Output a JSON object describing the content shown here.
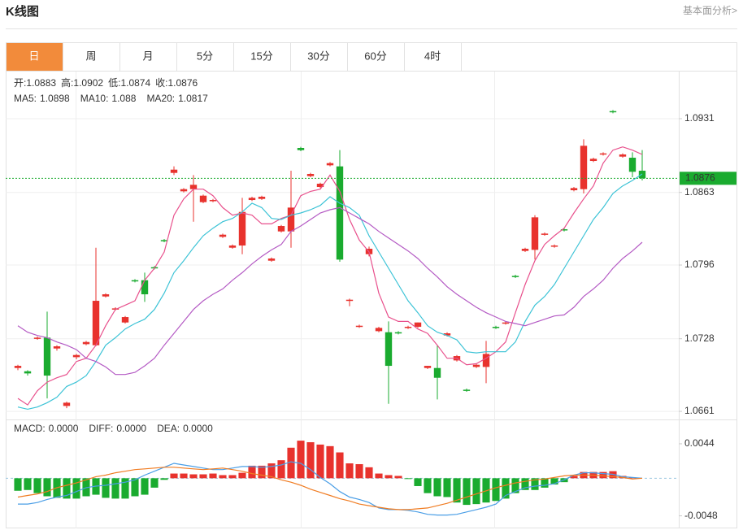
{
  "header": {
    "title": "K线图",
    "link": "基本面分析>"
  },
  "tabs": [
    "日",
    "周",
    "月",
    "5分",
    "15分",
    "30分",
    "60分",
    "4时"
  ],
  "active_tab": 0,
  "chart_data": [
    {
      "type": "candlestick",
      "ohlc_labels": [
        "开:",
        "高:",
        "低:",
        "收:"
      ],
      "up_color": "#e8322d",
      "down_color": "#1aab2f",
      "open": [
        1.0701,
        1.0698,
        1.0728,
        1.0729,
        1.0719,
        1.0666,
        1.0711,
        1.0723,
        1.0722,
        1.0767,
        1.0755,
        1.0743,
        1.0782,
        1.0782,
        1.0794,
        1.0819,
        1.0881,
        1.0864,
        1.0866,
        1.0854,
        1.0855,
        1.0822,
        1.0812,
        1.0814,
        1.0856,
        1.0857,
        1.08,
        1.0827,
        1.0827,
        1.0904,
        1.0878,
        1.0868,
        1.0888,
        1.0887,
        1.0763,
        1.0739,
        1.0806,
        1.0735,
        1.0734,
        1.0734,
        1.0738,
        1.0739,
        1.0701,
        1.0701,
        1.0731,
        1.0708,
        1.0681,
        1.0702,
        1.0702,
        1.0739,
        1.0742,
        1.0786,
        1.0809,
        1.081,
        1.0824,
        1.0813,
        1.0829,
        1.0865,
        1.0866,
        1.0892,
        1.0898,
        1.0938,
        1.0896,
        1.0895,
        1.0883
      ],
      "high": [
        1.0704,
        1.0699,
        1.073,
        1.0753,
        1.0722,
        1.067,
        1.0714,
        1.0726,
        1.0812,
        1.077,
        1.0757,
        1.0749,
        1.0783,
        1.0789,
        1.0795,
        1.082,
        1.0887,
        1.0867,
        1.0879,
        1.0861,
        1.0857,
        1.0825,
        1.0815,
        1.0858,
        1.0859,
        1.086,
        1.0803,
        1.0833,
        1.0883,
        1.0905,
        1.0881,
        1.0872,
        1.0891,
        1.0902,
        1.0765,
        1.0741,
        1.0813,
        1.0739,
        1.0744,
        1.0735,
        1.074,
        1.0743,
        1.0703,
        1.0722,
        1.0734,
        1.0713,
        1.0682,
        1.0705,
        1.0726,
        1.074,
        1.0744,
        1.0787,
        1.0812,
        1.0842,
        1.0826,
        1.0815,
        1.083,
        1.0868,
        1.0912,
        1.0895,
        1.09,
        1.0939,
        1.0899,
        1.09,
        1.0902
      ],
      "low": [
        1.0699,
        1.0694,
        1.0727,
        1.0673,
        1.0717,
        1.0664,
        1.0709,
        1.0722,
        1.0721,
        1.0766,
        1.0754,
        1.0742,
        1.078,
        1.0762,
        1.0792,
        1.0817,
        1.0879,
        1.0863,
        1.0836,
        1.0853,
        1.0854,
        1.0821,
        1.0811,
        1.0806,
        1.0855,
        1.0856,
        1.0799,
        1.0826,
        1.0812,
        1.0901,
        1.0877,
        1.0867,
        1.0887,
        1.0799,
        1.0758,
        1.0738,
        1.0804,
        1.0734,
        1.0668,
        1.0732,
        1.0737,
        1.0738,
        1.07,
        1.0672,
        1.073,
        1.0707,
        1.0679,
        1.0701,
        1.0687,
        1.0737,
        1.0741,
        1.0784,
        1.0808,
        1.0801,
        1.0823,
        1.0812,
        1.0827,
        1.0864,
        1.0862,
        1.0891,
        1.0897,
        1.0936,
        1.0895,
        1.0877,
        1.0874
      ],
      "close": [
        1.0703,
        1.0696,
        1.0729,
        1.0694,
        1.0721,
        1.0669,
        1.0713,
        1.0725,
        1.0763,
        1.0769,
        1.0756,
        1.0748,
        1.0781,
        1.0769,
        1.0793,
        1.0818,
        1.0884,
        1.0866,
        1.087,
        1.086,
        1.0856,
        1.0824,
        1.0814,
        1.0845,
        1.0858,
        1.0859,
        1.0802,
        1.0832,
        1.0849,
        1.0902,
        1.088,
        1.0871,
        1.089,
        1.0801,
        1.0764,
        1.074,
        1.0811,
        1.0738,
        1.0703,
        1.0733,
        1.0739,
        1.0743,
        1.0703,
        1.0692,
        1.0733,
        1.0712,
        1.068,
        1.0704,
        1.0714,
        1.0738,
        1.0743,
        1.0785,
        1.0811,
        1.084,
        1.0825,
        1.0814,
        1.0828,
        1.0867,
        1.0906,
        1.0894,
        1.0899,
        1.0937,
        1.0898,
        1.0882,
        1.0876
      ],
      "series": [
        {
          "name": "MA5:",
          "color": "#e8508c",
          "values": [
            1.0673,
            1.0667,
            1.068,
            1.0688,
            1.0692,
            1.0695,
            1.0707,
            1.071,
            1.0722,
            1.074,
            1.0755,
            1.0759,
            1.0763,
            1.0782,
            1.0793,
            1.0808,
            1.0842,
            1.0857,
            1.0866,
            1.0866,
            1.086,
            1.0849,
            1.0842,
            1.0844,
            1.0842,
            1.0834,
            1.0834,
            1.0839,
            1.0842,
            1.086,
            1.0864,
            1.0866,
            1.0879,
            1.0864,
            1.0838,
            1.0819,
            1.0808,
            1.077,
            1.0748,
            1.0744,
            1.0744,
            1.0737,
            1.0733,
            1.0722,
            1.071,
            1.071,
            1.0704,
            1.0705,
            1.071,
            1.0716,
            1.0725,
            1.0752,
            1.0778,
            1.08,
            1.0815,
            1.0823,
            1.083,
            1.0844,
            1.0857,
            1.0869,
            1.089,
            1.0902,
            1.0905,
            1.0902,
            1.0898
          ]
        },
        {
          "name": "MA10:",
          "color": "#3cc3d6",
          "values": [
            1.0665,
            1.0663,
            1.0665,
            1.0669,
            1.0674,
            1.0684,
            1.0688,
            1.0694,
            1.0707,
            1.0722,
            1.0729,
            1.0737,
            1.0742,
            1.0746,
            1.0755,
            1.077,
            1.0789,
            1.08,
            1.0812,
            1.0823,
            1.083,
            1.0836,
            1.0839,
            1.0845,
            1.0853,
            1.0849,
            1.0839,
            1.0838,
            1.0842,
            1.0844,
            1.0847,
            1.0851,
            1.0859,
            1.0853,
            1.0849,
            1.0842,
            1.0823,
            1.0808,
            1.0793,
            1.0778,
            1.0763,
            1.0752,
            1.074,
            1.0734,
            1.0731,
            1.0727,
            1.0716,
            1.0715,
            1.0716,
            1.0716,
            1.0716,
            1.0725,
            1.0744,
            1.0759,
            1.0767,
            1.0778,
            1.0793,
            1.0808,
            1.0823,
            1.0838,
            1.0849,
            1.0862,
            1.0869,
            1.0874,
            1.088
          ]
        },
        {
          "name": "MA20:",
          "color": "#b45ac4",
          "values": [
            1.074,
            1.0734,
            1.0731,
            1.0729,
            1.0725,
            1.0722,
            1.0718,
            1.071,
            1.0707,
            1.0702,
            1.0695,
            1.0695,
            1.0697,
            1.0703,
            1.071,
            1.0722,
            1.0733,
            1.0744,
            1.0755,
            1.0763,
            1.0769,
            1.0774,
            1.0782,
            1.0789,
            1.0797,
            1.0804,
            1.081,
            1.0815,
            1.0827,
            1.0832,
            1.0838,
            1.0844,
            1.0847,
            1.0849,
            1.0844,
            1.0839,
            1.0834,
            1.0827,
            1.0821,
            1.0815,
            1.0809,
            1.0802,
            1.0793,
            1.0785,
            1.0776,
            1.0769,
            1.0763,
            1.0757,
            1.0752,
            1.0748,
            1.0744,
            1.0742,
            1.074,
            1.0743,
            1.0746,
            1.0749,
            1.075,
            1.0757,
            1.0767,
            1.0774,
            1.0782,
            1.0793,
            1.0802,
            1.0809,
            1.0817
          ]
        }
      ],
      "ylim": [
        1.06543,
        1.09745
      ],
      "yticks": [
        1.0931,
        1.0863,
        1.0796,
        1.0728,
        1.0661
      ],
      "grid": true
    },
    {
      "type": "macd",
      "series": [
        {
          "name": "MACD:",
          "kind": "bar",
          "color": "#e8322d",
          "down_color": "#1aab2f",
          "legend_label": "0.0000",
          "values": [
            -0.0016,
            -0.0015,
            -0.0019,
            -0.0023,
            -0.0025,
            -0.0026,
            -0.0026,
            -0.0023,
            -0.0021,
            -0.0025,
            -0.0026,
            -0.0026,
            -0.0023,
            -0.0021,
            -0.0012,
            -0.0002,
            0.0006,
            0.0006,
            0.0005,
            0.0005,
            0.0006,
            0.0004,
            0.0004,
            0.0007,
            0.0016,
            0.0016,
            0.0019,
            0.0023,
            0.0039,
            0.0048,
            0.0046,
            0.0043,
            0.0041,
            0.0033,
            0.0019,
            0.0018,
            0.0014,
            0.0006,
            0.0004,
            0.0003,
            -0.0001,
            -0.001,
            -0.0019,
            -0.0023,
            -0.0024,
            -0.0031,
            -0.0034,
            -0.0033,
            -0.0031,
            -0.0029,
            -0.0026,
            -0.0019,
            -0.0015,
            -0.0015,
            -0.0012,
            -0.0008,
            -0.0005,
            0.0003,
            0.0008,
            0.0008,
            0.0008,
            0.0009,
            0.0003,
            0.0001,
            0
          ]
        },
        {
          "name": "DIFF:",
          "kind": "line",
          "color": "#4a9ee6",
          "legend_label": "0.0000",
          "values": [
            -0.0033,
            -0.0033,
            -0.0031,
            -0.0027,
            -0.0024,
            -0.0022,
            -0.0017,
            -0.0012,
            -0.001,
            -0.0009,
            -0.0007,
            -0.0005,
            -0.0002,
            0.0004,
            0.0009,
            0.0014,
            0.0019,
            0.0017,
            0.0015,
            0.0013,
            0.0011,
            0.0011,
            0.0013,
            0.0015,
            0.0015,
            0.0014,
            0.0015,
            0.0017,
            0.0021,
            0.0019,
            0.0011,
            0.0001,
            -0.0007,
            -0.0017,
            -0.0024,
            -0.0027,
            -0.0031,
            -0.0038,
            -0.004,
            -0.004,
            -0.0041,
            -0.0043,
            -0.0046,
            -0.0047,
            -0.0047,
            -0.0046,
            -0.0043,
            -0.004,
            -0.0037,
            -0.0033,
            -0.0022,
            -0.0017,
            -0.0012,
            -0.001,
            -0.0009,
            -0.0007,
            -0.0002,
            0.0004,
            0.0007,
            0.0007,
            0.0006,
            0.0005,
            0.0002,
            0.0001,
            0
          ]
        },
        {
          "name": "DEA:",
          "kind": "line",
          "color": "#f07c22",
          "legend_label": "0.0000",
          "values": [
            -0.0024,
            -0.0022,
            -0.002,
            -0.0017,
            -0.0012,
            -0.0009,
            -0.0006,
            -0.0002,
            0.0002,
            0.0004,
            0.0007,
            0.0009,
            0.0011,
            0.0012,
            0.0013,
            0.0014,
            0.0014,
            0.0013,
            0.0012,
            0.0011,
            0.0012,
            0.0013,
            0.0011,
            0.0009,
            0.0006,
            0.0004,
            0.0002,
            -0.0002,
            -0.0005,
            -0.0009,
            -0.0014,
            -0.0018,
            -0.0022,
            -0.0026,
            -0.0029,
            -0.0033,
            -0.0035,
            -0.0037,
            -0.0039,
            -0.004,
            -0.004,
            -0.0039,
            -0.0038,
            -0.0035,
            -0.0032,
            -0.0028,
            -0.0024,
            -0.002,
            -0.0016,
            -0.0012,
            -0.0009,
            -0.0006,
            -0.0004,
            -0.0002,
            -0.0001,
            0.0001,
            0.0003,
            0.0004,
            0.0004,
            0.0004,
            0.0003,
            0.0002,
            0.0001,
            -0.0001,
            0
          ]
        }
      ],
      "ylim": [
        -0.0064,
        0.0073
      ],
      "yticks": [
        0.0044,
        -0.0048
      ],
      "grid": false
    }
  ]
}
